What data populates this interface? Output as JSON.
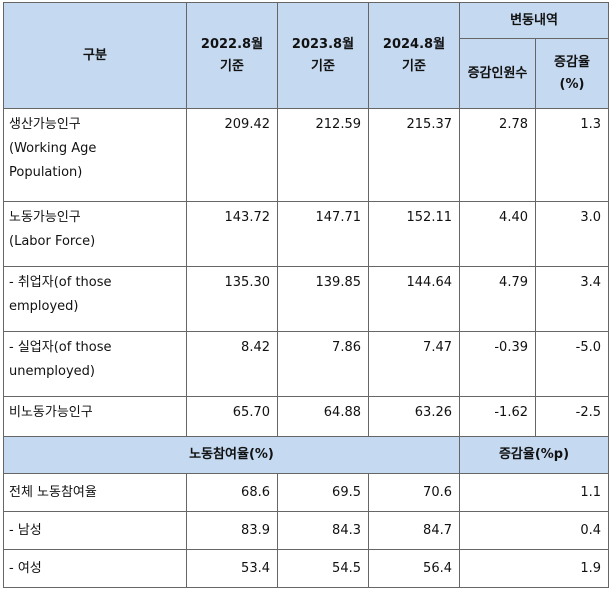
{
  "header": {
    "category": "구분",
    "col1": [
      "2022.8월",
      "기준"
    ],
    "col2": [
      "2023.8월",
      "기준"
    ],
    "col3": [
      "2024.8월",
      "기준"
    ],
    "change": "변동내역",
    "change_count": "증감인원수",
    "change_rate": [
      "증감율",
      "(%)"
    ]
  },
  "rows": [
    {
      "label": [
        "생산가능인구",
        "(Working Age",
        "Population)"
      ],
      "v1": "209.42",
      "v2": "212.59",
      "v3": "215.37",
      "diff": "2.78",
      "rate": "1.3"
    },
    {
      "label": [
        "노동가능인구",
        "(Labor Force)"
      ],
      "v1": "143.72",
      "v2": "147.71",
      "v3": "152.11",
      "diff": "4.40",
      "rate": "3.0"
    },
    {
      "label": [
        "- 취업자(of those",
        "employed)"
      ],
      "v1": "135.30",
      "v2": "139.85",
      "v3": "144.64",
      "diff": "4.79",
      "rate": "3.4"
    },
    {
      "label": [
        "- 실업자(of those",
        "unemployed)"
      ],
      "v1": "8.42",
      "v2": "7.86",
      "v3": "7.47",
      "diff": "-0.39",
      "rate": "-5.0"
    },
    {
      "label": [
        "비노동가능인구"
      ],
      "v1": "65.70",
      "v2": "64.88",
      "v3": "63.26",
      "diff": "-1.62",
      "rate": "-2.5"
    }
  ],
  "section2": {
    "title": "노동참여율(%)",
    "change_title": "증감율(%p)"
  },
  "rows2": [
    {
      "label": "전체 노동참여율",
      "v1": "68.6",
      "v2": "69.5",
      "v3": "70.6",
      "rate": "1.1"
    },
    {
      "label": "- 남성",
      "v1": "83.9",
      "v2": "84.3",
      "v3": "84.7",
      "rate": "0.4"
    },
    {
      "label": "- 여성",
      "v1": "53.4",
      "v2": "54.5",
      "v3": "56.4",
      "rate": "1.9"
    }
  ]
}
